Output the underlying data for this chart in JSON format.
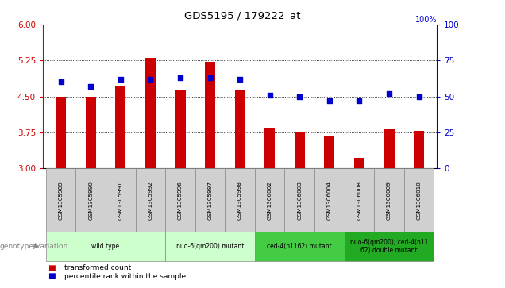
{
  "title": "GDS5195 / 179222_at",
  "samples": [
    "GSM1305989",
    "GSM1305990",
    "GSM1305991",
    "GSM1305992",
    "GSM1305996",
    "GSM1305997",
    "GSM1305998",
    "GSM1306002",
    "GSM1306003",
    "GSM1306004",
    "GSM1306008",
    "GSM1306009",
    "GSM1306010"
  ],
  "bar_values": [
    4.5,
    4.5,
    4.72,
    5.3,
    4.65,
    5.22,
    4.65,
    3.85,
    3.75,
    3.68,
    3.22,
    3.83,
    3.78
  ],
  "dot_values": [
    60,
    57,
    62,
    62,
    63,
    63,
    62,
    51,
    50,
    47,
    47,
    52,
    50
  ],
  "bar_bottom": 3.0,
  "ylim": [
    3.0,
    6.0
  ],
  "y2lim": [
    0,
    100
  ],
  "yticks": [
    3,
    3.75,
    4.5,
    5.25,
    6
  ],
  "y2ticks": [
    0,
    25,
    50,
    75,
    100
  ],
  "dotted_lines": [
    3.75,
    4.5,
    5.25
  ],
  "bar_color": "#cc0000",
  "dot_color": "#0000cc",
  "groups": [
    {
      "label": "wild type",
      "start": 0,
      "end": 3,
      "color": "#ccffcc"
    },
    {
      "label": "nuo-6(qm200) mutant",
      "start": 4,
      "end": 6,
      "color": "#ccffcc"
    },
    {
      "label": "ced-4(n1162) mutant",
      "start": 7,
      "end": 9,
      "color": "#44cc44"
    },
    {
      "label": "nuo-6(qm200); ced-4(n11\n62) double mutant",
      "start": 10,
      "end": 12,
      "color": "#22aa22"
    }
  ],
  "genotype_label": "genotype/variation",
  "legend_bar": "transformed count",
  "legend_dot": "percentile rank within the sample",
  "tick_color_left": "#cc0000",
  "tick_color_right": "#0000cc",
  "sample_box_color": "#d0d0d0",
  "plot_bg": "#ffffff"
}
